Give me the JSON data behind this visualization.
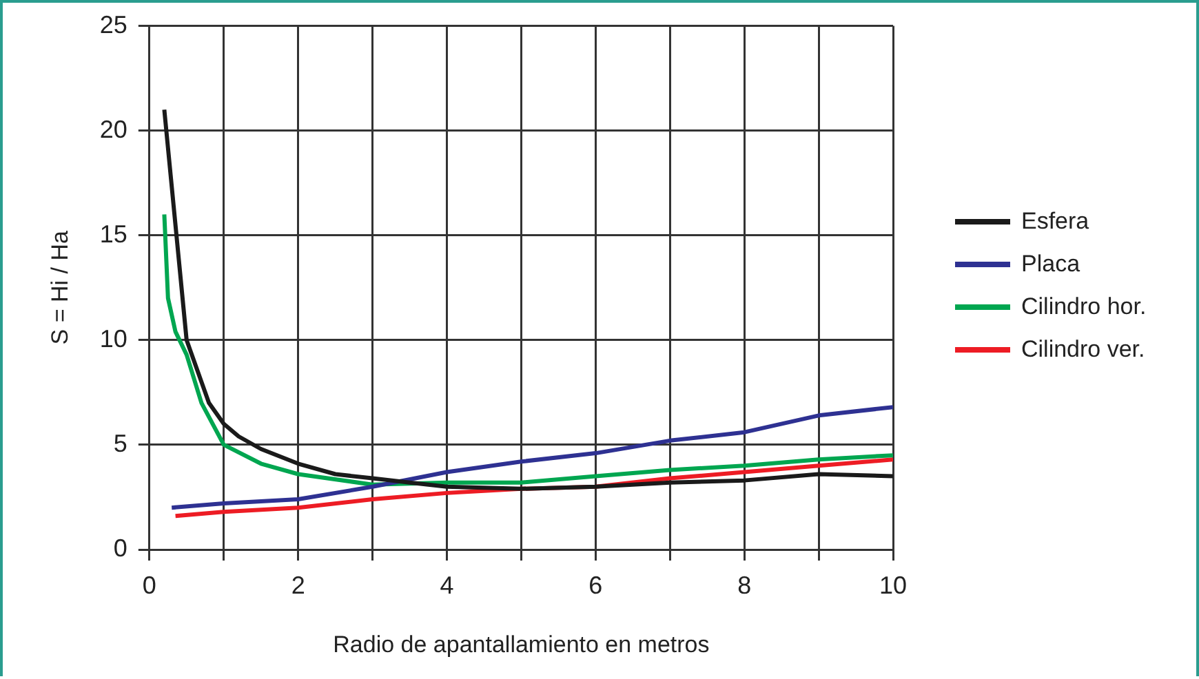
{
  "chart_data": {
    "type": "line",
    "xlabel": "Radio de apantallamiento en metros",
    "ylabel": "S = Hi / Ha",
    "xlim": [
      0,
      10
    ],
    "xticks": [
      0,
      {
        "value": 1,
        "label": null
      },
      2,
      {
        "value": 3,
        "label": null
      },
      4,
      {
        "value": 5,
        "label": null
      },
      6,
      {
        "value": 7,
        "label": null
      },
      8,
      {
        "value": 9,
        "label": null
      },
      10
    ],
    "ylim": [
      0,
      25
    ],
    "yticks": [
      0,
      5,
      10,
      15,
      20,
      25
    ],
    "grid": true,
    "legend": "right",
    "marker": "none",
    "line_style": "solid",
    "series": [
      {
        "name": "Esfera",
        "color": "#1a1a1a",
        "x": [
          0.2,
          0.5,
          0.8,
          1,
          1.2,
          1.5,
          2,
          2.5,
          3,
          3.5,
          4,
          5,
          6,
          7,
          8,
          9,
          10
        ],
        "values": [
          21,
          10,
          7,
          6,
          5.4,
          4.8,
          4.1,
          3.6,
          3.4,
          3.2,
          3.0,
          2.9,
          3.0,
          3.2,
          3.3,
          3.6,
          3.5
        ]
      },
      {
        "name": "Placa",
        "color": "#2e3192",
        "x": [
          0.3,
          1,
          2,
          3,
          4,
          5,
          6,
          7,
          8,
          9,
          10
        ],
        "values": [
          2.0,
          2.2,
          2.4,
          3.0,
          3.7,
          4.2,
          4.6,
          5.2,
          5.6,
          6.4,
          6.8
        ]
      },
      {
        "name": "Cilindro hor.",
        "color": "#00a650",
        "x": [
          0.2,
          0.25,
          0.35,
          0.5,
          0.7,
          1,
          1.5,
          2,
          3,
          4,
          5,
          6,
          7,
          8,
          9,
          10
        ],
        "values": [
          16,
          12,
          10.4,
          9.3,
          7,
          5,
          4.1,
          3.6,
          3.1,
          3.2,
          3.2,
          3.5,
          3.8,
          4.0,
          4.3,
          4.5
        ]
      },
      {
        "name": "Cilindro ver.",
        "color": "#ed1c24",
        "x": [
          0.35,
          1,
          2,
          3,
          4,
          5,
          6,
          7,
          8,
          9,
          10
        ],
        "values": [
          1.6,
          1.8,
          2.0,
          2.4,
          2.7,
          2.9,
          3.0,
          3.4,
          3.7,
          4.0,
          4.3
        ]
      }
    ]
  }
}
